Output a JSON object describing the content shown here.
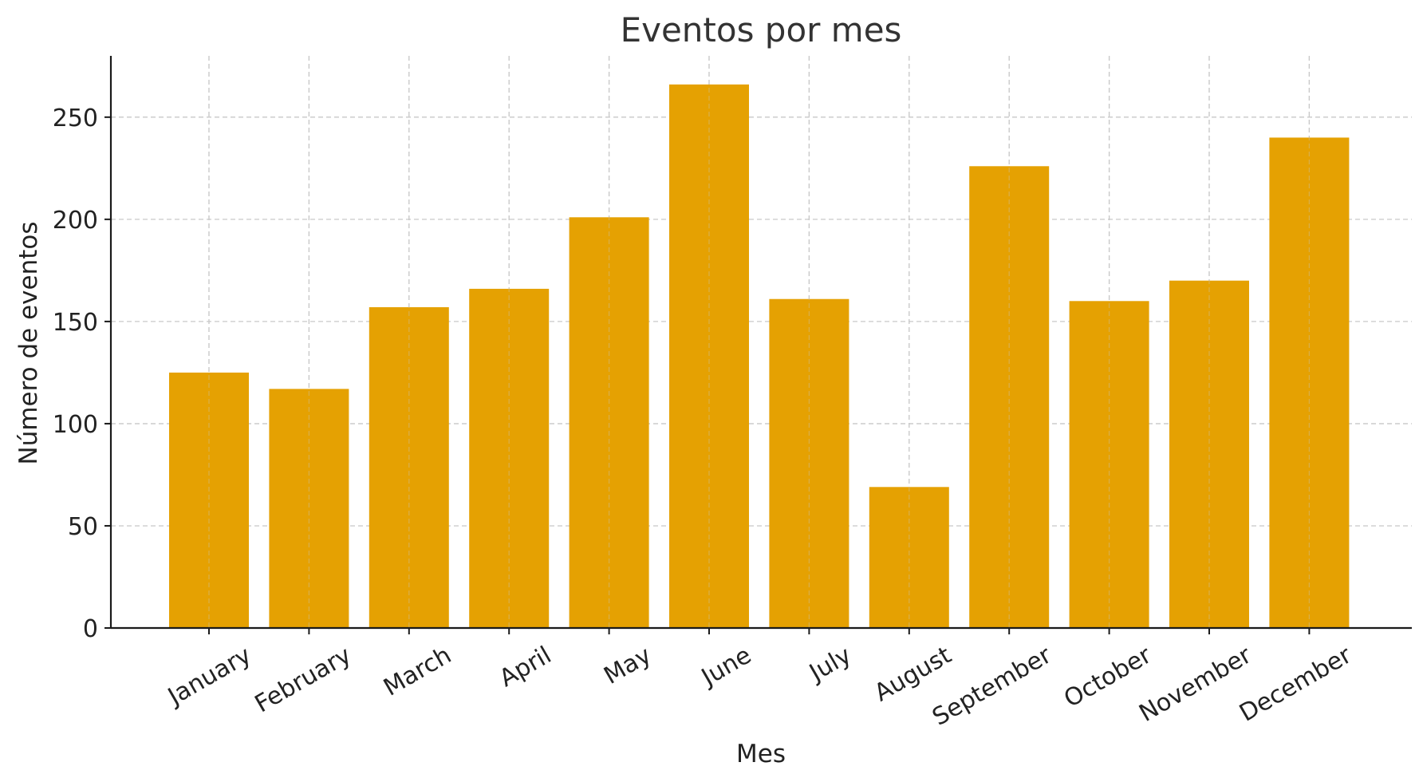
{
  "chart_data": {
    "type": "bar",
    "title": "Eventos por mes",
    "xlabel": "Mes",
    "ylabel": "Número de eventos",
    "categories": [
      "January",
      "February",
      "March",
      "April",
      "May",
      "June",
      "July",
      "August",
      "September",
      "October",
      "November",
      "December"
    ],
    "values": [
      125,
      117,
      157,
      166,
      201,
      266,
      161,
      69,
      226,
      160,
      170,
      240
    ],
    "ylim": [
      0,
      280
    ],
    "yticks": [
      0,
      50,
      100,
      150,
      200,
      250
    ],
    "grid": true,
    "legend": "none",
    "colors": {
      "bar": "#E5A102",
      "grid": "#c8c8c8",
      "axis": "#1a1a1a",
      "title": "#333333"
    }
  }
}
